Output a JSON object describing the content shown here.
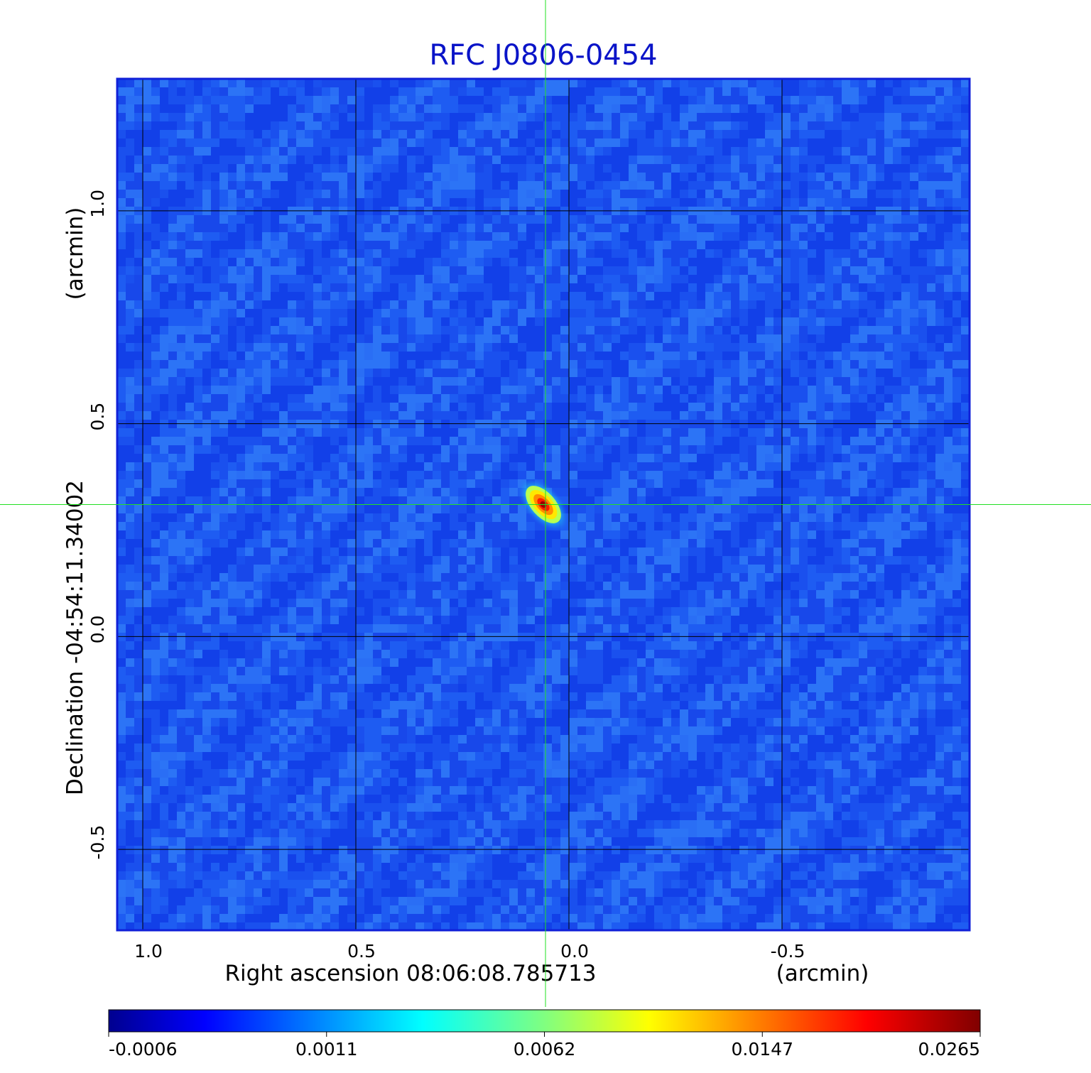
{
  "chart_data": {
    "type": "heatmap",
    "title": "RFC J0806-0454",
    "xlabel": "Right ascension  08:06:08.785713",
    "xunit": "(arcmin)",
    "ylabel": "Declination  -04:54:11.34002",
    "yunit": "(arcmin)",
    "xlim": [
      1.06,
      -0.94
    ],
    "ylim": [
      -0.69,
      1.31
    ],
    "x_ticks": [
      {
        "value": 1.0,
        "label": "1.0"
      },
      {
        "value": 0.5,
        "label": "0.5"
      },
      {
        "value": 0.0,
        "label": "0.0"
      },
      {
        "value": -0.5,
        "label": "-0.5"
      }
    ],
    "y_ticks": [
      {
        "value": 1.0,
        "label": "1.0"
      },
      {
        "value": 0.5,
        "label": "0.5"
      },
      {
        "value": 0.0,
        "label": "0.0"
      },
      {
        "value": -0.5,
        "label": "-0.5"
      }
    ],
    "grid": true,
    "crosshair": {
      "x": 0.055,
      "y": 0.31
    },
    "peak": {
      "x": 0.06,
      "y": 0.31,
      "value": 0.0265
    },
    "colormap": "jet",
    "colorbar": {
      "placement": "bottom",
      "min": -0.0006,
      "max": 0.0265,
      "tick_labels": [
        "-0.0006",
        "0.0011",
        "0.0062",
        "0.0147",
        "0.0265"
      ]
    },
    "colors": {
      "title": "#0a14c8",
      "frame": "#1020d8",
      "grid": "#000000",
      "crosshair": "#22e022",
      "background_level": "#1e5cf2"
    }
  }
}
